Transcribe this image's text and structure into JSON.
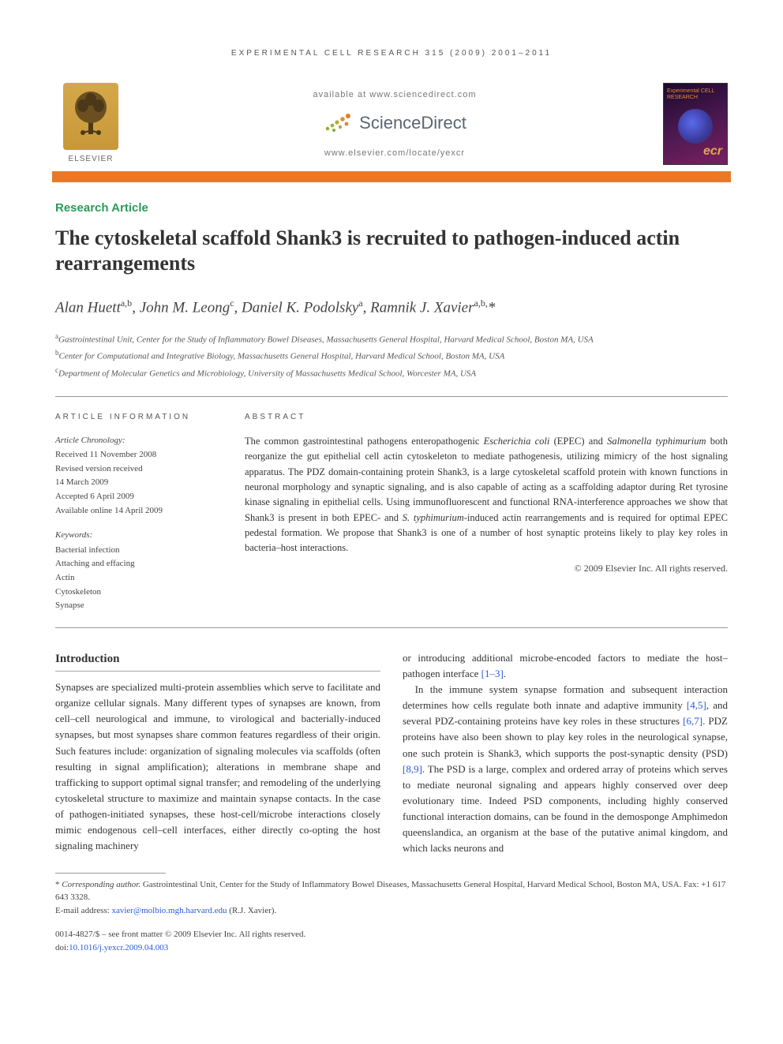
{
  "running_header": "EXPERIMENTAL CELL RESEARCH 315 (2009) 2001–2011",
  "header": {
    "available_at": "available at www.sciencedirect.com",
    "sciencedirect": "ScienceDirect",
    "journal_url": "www.elsevier.com/locate/yexcr",
    "publisher_name": "ELSEVIER",
    "cover_title": "Experimental\nCELL RESEARCH",
    "cover_badge": "ecr"
  },
  "colors": {
    "accent_bar": "#e8792a",
    "article_type": "#2a9a5a",
    "link": "#2a5adb",
    "text": "#333333"
  },
  "article_type": "Research Article",
  "title": "The cytoskeletal scaffold Shank3 is recruited to pathogen-induced actin rearrangements",
  "authors_html": "Alan Huett<sup>a,b</sup>, John M. Leong<sup>c</sup>, Daniel K. Podolsky<sup>a</sup>, Ramnik J. Xavier<sup>a,b,</sup>*",
  "affiliations": [
    {
      "sup": "a",
      "text": "Gastrointestinal Unit, Center for the Study of Inflammatory Bowel Diseases, Massachusetts General Hospital, Harvard Medical School, Boston MA, USA"
    },
    {
      "sup": "b",
      "text": "Center for Computational and Integrative Biology, Massachusetts General Hospital, Harvard Medical School, Boston MA, USA"
    },
    {
      "sup": "c",
      "text": "Department of Molecular Genetics and Microbiology, University of Massachusetts Medical School, Worcester MA, USA"
    }
  ],
  "article_info": {
    "heading": "ARTICLE INFORMATION",
    "chronology_label": "Article Chronology:",
    "chronology": [
      "Received 11 November 2008",
      "Revised version received",
      "14 March 2009",
      "Accepted 6 April 2009",
      "Available online 14 April 2009"
    ],
    "keywords_label": "Keywords:",
    "keywords": [
      "Bacterial infection",
      "Attaching and effacing",
      "Actin",
      "Cytoskeleton",
      "Synapse"
    ]
  },
  "abstract": {
    "heading": "ABSTRACT",
    "text": "The common gastrointestinal pathogens enteropathogenic Escherichia coli (EPEC) and Salmonella typhimurium both reorganize the gut epithelial cell actin cytoskeleton to mediate pathogenesis, utilizing mimicry of the host signaling apparatus. The PDZ domain-containing protein Shank3, is a large cytoskeletal scaffold protein with known functions in neuronal morphology and synaptic signaling, and is also capable of acting as a scaffolding adaptor during Ret tyrosine kinase signaling in epithelial cells. Using immunofluorescent and functional RNA-interference approaches we show that Shank3 is present in both EPEC- and S. typhimurium-induced actin rearrangements and is required for optimal EPEC pedestal formation. We propose that Shank3 is one of a number of host synaptic proteins likely to play key roles in bacteria–host interactions.",
    "copyright": "© 2009 Elsevier Inc. All rights reserved."
  },
  "body": {
    "section_heading": "Introduction",
    "col1_p1": "Synapses are specialized multi-protein assemblies which serve to facilitate and organize cellular signals. Many different types of synapses are known, from cell–cell neurological and immune, to virological and bacterially-induced synapses, but most synapses share common features regardless of their origin. Such features include: organization of signaling molecules via scaffolds (often resulting in signal amplification); alterations in membrane shape and trafficking to support optimal signal transfer; and remodeling of the underlying cytoskeletal structure to maximize and maintain synapse contacts. In the case of pathogen-initiated synapses, these host-cell/microbe interactions closely mimic endogenous cell–cell interfaces, either directly co-opting the host signaling machinery",
    "col2_p1_pre": "or introducing additional microbe-encoded factors to mediate the host–pathogen interface ",
    "col2_p1_ref": "[1–3]",
    "col2_p1_post": ".",
    "col2_p2": "In the immune system synapse formation and subsequent interaction determines how cells regulate both innate and adaptive immunity [4,5], and several PDZ-containing proteins have key roles in these structures [6,7]. PDZ proteins have also been shown to play key roles in the neurological synapse, one such protein is Shank3, which supports the post-synaptic density (PSD) [8,9]. The PSD is a large, complex and ordered array of proteins which serves to mediate neuronal signaling and appears highly conserved over deep evolutionary time. Indeed PSD components, including highly conserved functional interaction domains, can be found in the demosponge Amphimedon queenslandica, an organism at the base of the putative animal kingdom, and which lacks neurons and",
    "refs_inline": {
      "r45": "[4,5]",
      "r67": "[6,7]",
      "r89": "[8,9]"
    }
  },
  "footnotes": {
    "corresponding": "* Corresponding author. Gastrointestinal Unit, Center for the Study of Inflammatory Bowel Diseases, Massachusetts General Hospital, Harvard Medical School, Boston MA, USA. Fax: +1 617 643 3328.",
    "email_label": "E-mail address: ",
    "email": "xavier@molbio.mgh.harvard.edu",
    "email_attribution": " (R.J. Xavier)."
  },
  "bottom": {
    "issn_line": "0014-4827/$ – see front matter © 2009 Elsevier Inc. All rights reserved.",
    "doi_label": "doi:",
    "doi": "10.1016/j.yexcr.2009.04.003"
  }
}
